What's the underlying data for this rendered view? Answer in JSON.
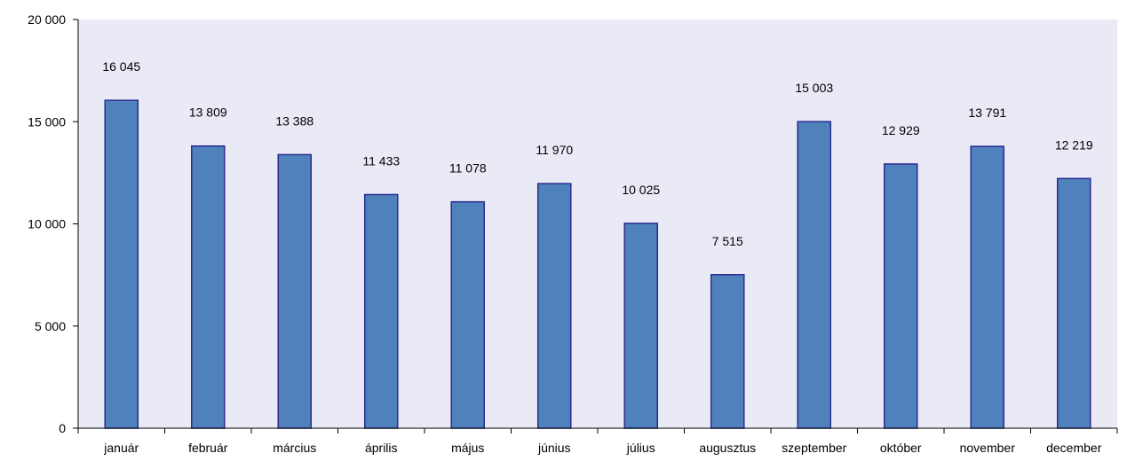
{
  "chart_data": {
    "type": "bar",
    "title": "",
    "xlabel": "",
    "ylabel": "",
    "categories": [
      "január",
      "február",
      "március",
      "április",
      "május",
      "június",
      "július",
      "augusztus",
      "szeptember",
      "október",
      "november",
      "december"
    ],
    "values": [
      16045,
      13809,
      13388,
      11433,
      11078,
      11970,
      10025,
      7515,
      15003,
      12929,
      13791,
      12219
    ],
    "value_labels": [
      "16 045",
      "13 809",
      "13 388",
      "11 433",
      "11 078",
      "11 970",
      "10 025",
      "7 515",
      "15 003",
      "12 929",
      "13 791",
      "12 219"
    ],
    "ylim": [
      0,
      20000
    ],
    "yticks": [
      0,
      5000,
      10000,
      15000,
      20000
    ],
    "ytick_labels": [
      "0",
      "5 000",
      "10 000",
      "15 000",
      "20 000"
    ],
    "grid": false,
    "legend": "none",
    "colors": {
      "plot_background": "#eaeaf6",
      "bar_fill": "#4f81bd",
      "bar_stroke": "#2b2b8f",
      "axis": "#000000"
    }
  }
}
